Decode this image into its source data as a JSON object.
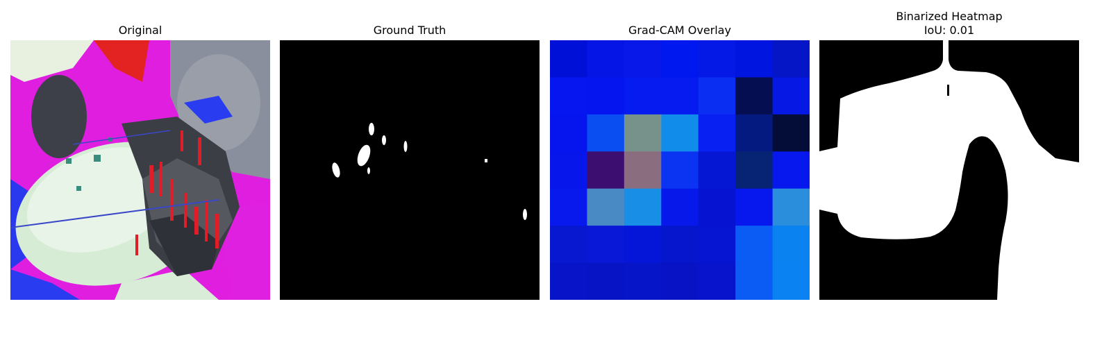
{
  "panels": [
    {
      "title": "Original"
    },
    {
      "title": "Ground Truth"
    },
    {
      "title": "Grad-CAM Overlay"
    },
    {
      "title": "Binarized Heatmap",
      "subtitle": "IoU: 0.01"
    }
  ],
  "gradcam": {
    "rows": 7,
    "cols": 7,
    "colors": [
      [
        "#0010d6",
        "#0515e6",
        "#0818e8",
        "#0018f0",
        "#0519e6",
        "#0015e0",
        "#0516c6"
      ],
      [
        "#0516f0",
        "#0515f0",
        "#061bf0",
        "#061bf0",
        "#0a2ef2",
        "#040e50",
        "#0618e4"
      ],
      [
        "#0615ee",
        "#0a4ef2",
        "#76928a",
        "#128cea",
        "#0820f2",
        "#041a80",
        "#040c38"
      ],
      [
        "#0717ec",
        "#3c0e70",
        "#8a6e80",
        "#0a34f2",
        "#0617d4",
        "#072474",
        "#0618ee"
      ],
      [
        "#0819ee",
        "#4a8ac4",
        "#188ee6",
        "#0618ea",
        "#0614d2",
        "#0618ee",
        "#2a8edc"
      ],
      [
        "#0817d0",
        "#0818d6",
        "#0616d8",
        "#0616cc",
        "#0615d2",
        "#0a5cf4",
        "#0a82f0"
      ],
      [
        "#0814c8",
        "#0714c6",
        "#0715c8",
        "#0713c4",
        "#0714cc",
        "#0a5cf4",
        "#0a82f2"
      ]
    ]
  }
}
